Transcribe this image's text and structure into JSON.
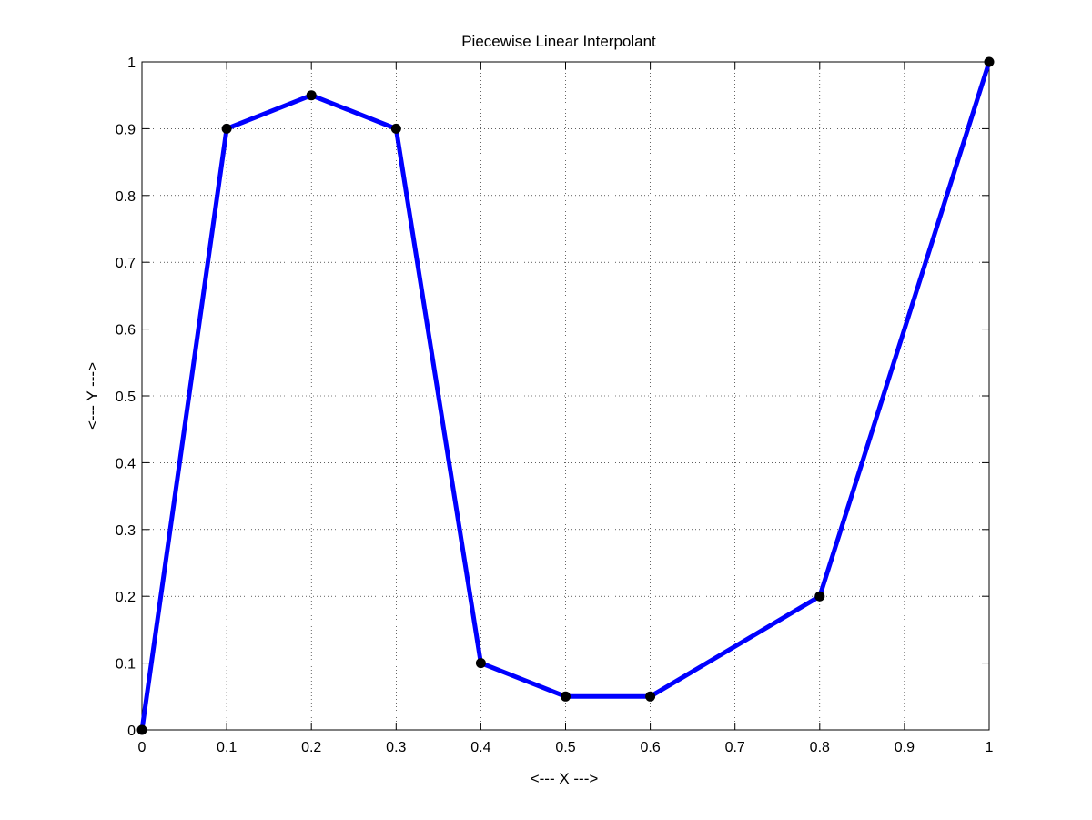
{
  "chart_data": {
    "type": "line",
    "title": "Piecewise Linear Interpolant",
    "xlabel": "<--- X --->",
    "ylabel": "<--- Y --->",
    "xlim": [
      0,
      1
    ],
    "ylim": [
      0,
      1
    ],
    "grid": true,
    "xticks": [
      0,
      0.1,
      0.2,
      0.3,
      0.4,
      0.5,
      0.6,
      0.7,
      0.8,
      0.9,
      1
    ],
    "yticks": [
      0,
      0.1,
      0.2,
      0.3,
      0.4,
      0.5,
      0.6,
      0.7,
      0.8,
      0.9,
      1
    ],
    "xtick_labels": [
      "0",
      "0.1",
      "0.2",
      "0.3",
      "0.4",
      "0.5",
      "0.6",
      "0.7",
      "0.8",
      "0.9",
      "1"
    ],
    "ytick_labels": [
      "0",
      "0.1",
      "0.2",
      "0.3",
      "0.4",
      "0.5",
      "0.6",
      "0.7",
      "0.8",
      "0.9",
      "1"
    ],
    "series": [
      {
        "line_color": "#0000ff",
        "marker_color": "#000000",
        "x": [
          0,
          0.1,
          0.2,
          0.3,
          0.4,
          0.5,
          0.6,
          0.8,
          1
        ],
        "y": [
          0,
          0.9,
          0.95,
          0.9,
          0.1,
          0.05,
          0.05,
          0.2,
          1
        ]
      }
    ]
  }
}
